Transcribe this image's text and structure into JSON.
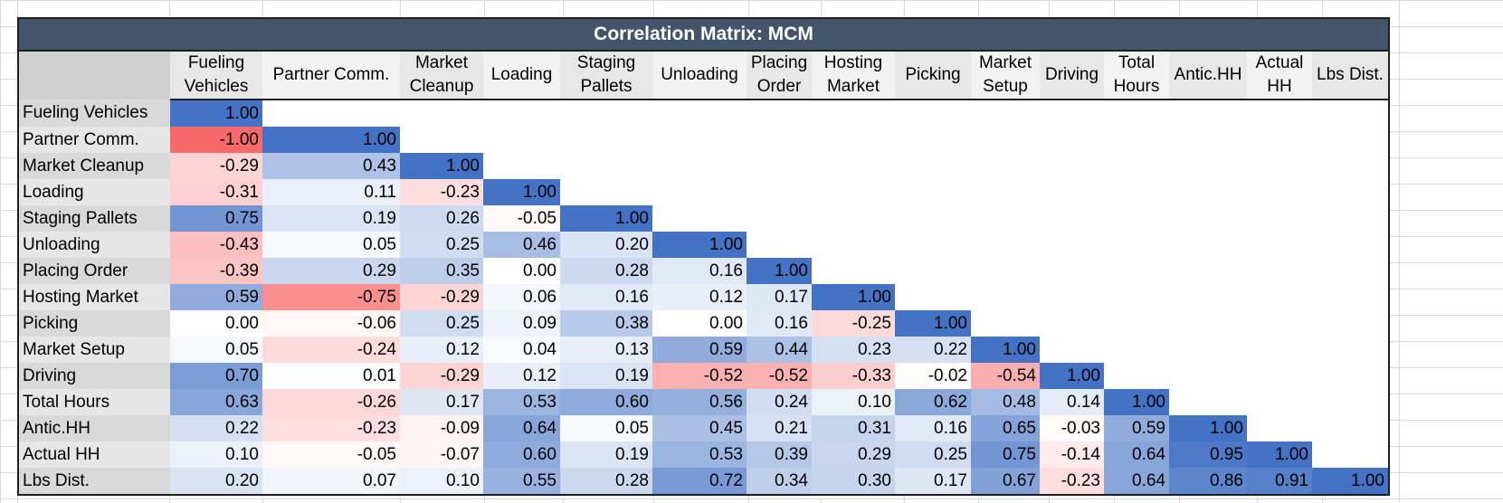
{
  "title": "Correlation Matrix: MCM",
  "colors": {
    "positive": "#4472c4",
    "negative": "#f8696b",
    "neutral": "#ffffff",
    "header": "#44546a"
  },
  "chart_data": {
    "type": "heatmap",
    "title": "Correlation Matrix: MCM",
    "row_labels": [
      "Fueling Vehicles",
      "Partner Comm.",
      "Market Cleanup",
      "Loading",
      "Staging Pallets",
      "Unloading",
      "Placing Order",
      "Hosting Market",
      "Picking",
      "Market Setup",
      "Driving",
      "Total Hours",
      "Antic.HH",
      "Actual HH",
      "Lbs Dist."
    ],
    "column_labels": [
      [
        "Fueling",
        "Vehicles"
      ],
      [
        "Partner Comm."
      ],
      [
        "Market",
        "Cleanup"
      ],
      [
        "Loading"
      ],
      [
        "Staging",
        "Pallets"
      ],
      [
        "Unloading"
      ],
      [
        "Placing",
        "Order"
      ],
      [
        "Hosting",
        "Market"
      ],
      [
        "Picking"
      ],
      [
        "Market",
        "Setup"
      ],
      [
        "Driving"
      ],
      [
        "Total",
        "Hours"
      ],
      [
        "Antic.HH"
      ],
      [
        "Actual",
        "HH"
      ],
      [
        "Lbs Dist."
      ]
    ],
    "values": [
      [
        "1.00"
      ],
      [
        "-1.00",
        "1.00"
      ],
      [
        "-0.29",
        "0.43",
        "1.00"
      ],
      [
        "-0.31",
        "0.11",
        "-0.23",
        "1.00"
      ],
      [
        "0.75",
        "0.19",
        "0.26",
        "-0.05",
        "1.00"
      ],
      [
        "-0.43",
        "0.05",
        "0.25",
        "0.46",
        "0.20",
        "1.00"
      ],
      [
        "-0.39",
        "0.29",
        "0.35",
        "0.00",
        "0.28",
        "0.16",
        "1.00"
      ],
      [
        "0.59",
        "-0.75",
        "-0.29",
        "0.06",
        "0.16",
        "0.12",
        "0.17",
        "1.00"
      ],
      [
        "0.00",
        "-0.06",
        "0.25",
        "0.09",
        "0.38",
        "0.00",
        "0.16",
        "-0.25",
        "1.00"
      ],
      [
        "0.05",
        "-0.24",
        "0.12",
        "0.04",
        "0.13",
        "0.59",
        "0.44",
        "0.23",
        "0.22",
        "1.00"
      ],
      [
        "0.70",
        "0.01",
        "-0.29",
        "0.12",
        "0.19",
        "-0.52",
        "-0.52",
        "-0.33",
        "-0.02",
        "-0.54",
        "1.00"
      ],
      [
        "0.63",
        "-0.26",
        "0.17",
        "0.53",
        "0.60",
        "0.56",
        "0.24",
        "0.10",
        "0.62",
        "0.48",
        "0.14",
        "1.00"
      ],
      [
        "0.22",
        "-0.23",
        "-0.09",
        "0.64",
        "0.05",
        "0.45",
        "0.21",
        "0.31",
        "0.16",
        "0.65",
        "-0.03",
        "0.59",
        "1.00"
      ],
      [
        "0.10",
        "-0.05",
        "-0.07",
        "0.60",
        "0.19",
        "0.53",
        "0.39",
        "0.29",
        "0.25",
        "0.75",
        "-0.14",
        "0.64",
        "0.95",
        "1.00"
      ],
      [
        "0.20",
        "0.07",
        "0.10",
        "0.55",
        "0.28",
        "0.72",
        "0.34",
        "0.30",
        "0.17",
        "0.67",
        "-0.23",
        "0.64",
        "0.86",
        "0.91",
        "1.00"
      ]
    ],
    "value_range": [
      -1,
      1
    ]
  }
}
